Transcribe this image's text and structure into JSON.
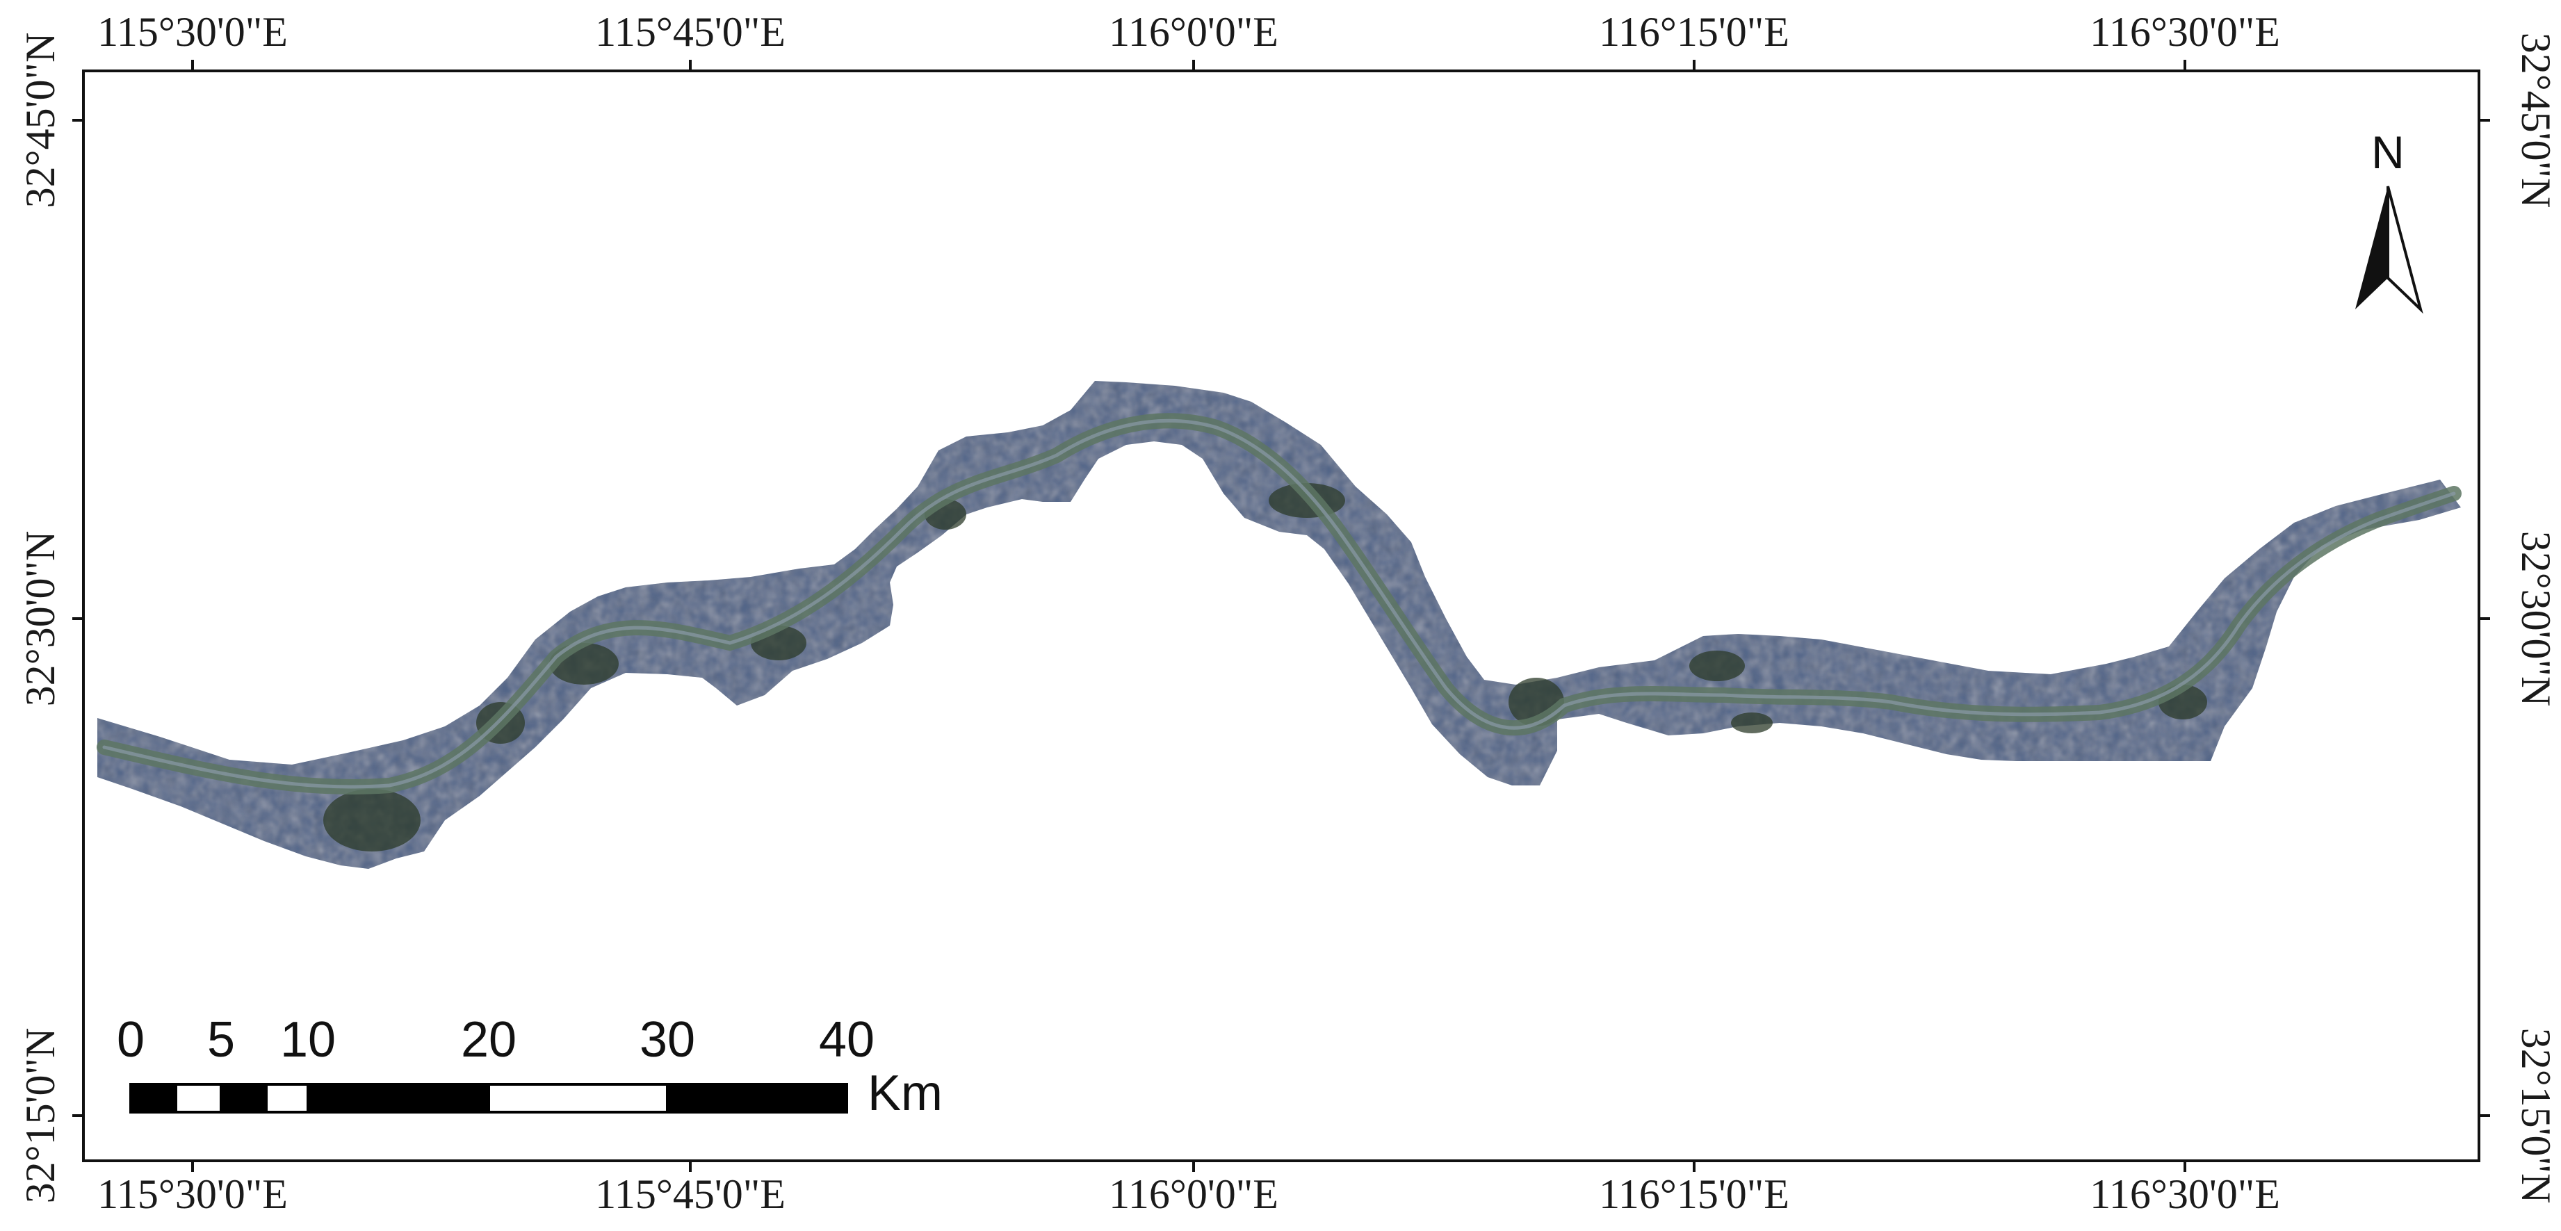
{
  "map": {
    "top_longitude_labels": [
      "115°30'0\"E",
      "115°45'0\"E",
      "116°0'0\"E",
      "116°15'0\"E",
      "116°30'0\"E"
    ],
    "bottom_longitude_labels": [
      "115°30'0\"E",
      "115°45'0\"E",
      "116°0'0\"E",
      "116°15'0\"E",
      "116°30'0\"E"
    ],
    "left_latitude_labels": [
      "32°45'0\"N",
      "32°30'0\"N",
      "32°15'0\"N"
    ],
    "right_latitude_labels": [
      "32°45'0\"N",
      "32°30'0\"N",
      "32°15'0\"N"
    ],
    "north_arrow": {
      "label": "N",
      "icon": "north-arrow-icon"
    },
    "scale_bar": {
      "tick_labels": [
        "0",
        "5",
        "10",
        "20",
        "30",
        "40"
      ],
      "unit": "Km"
    },
    "colors": {
      "frame": "#111111",
      "river_corridor": "#4f6488",
      "river_channel": "#5d7563",
      "vegetation": "#2c3b2a",
      "scale_dark": "#000000",
      "scale_light": "#ffffff"
    }
  }
}
